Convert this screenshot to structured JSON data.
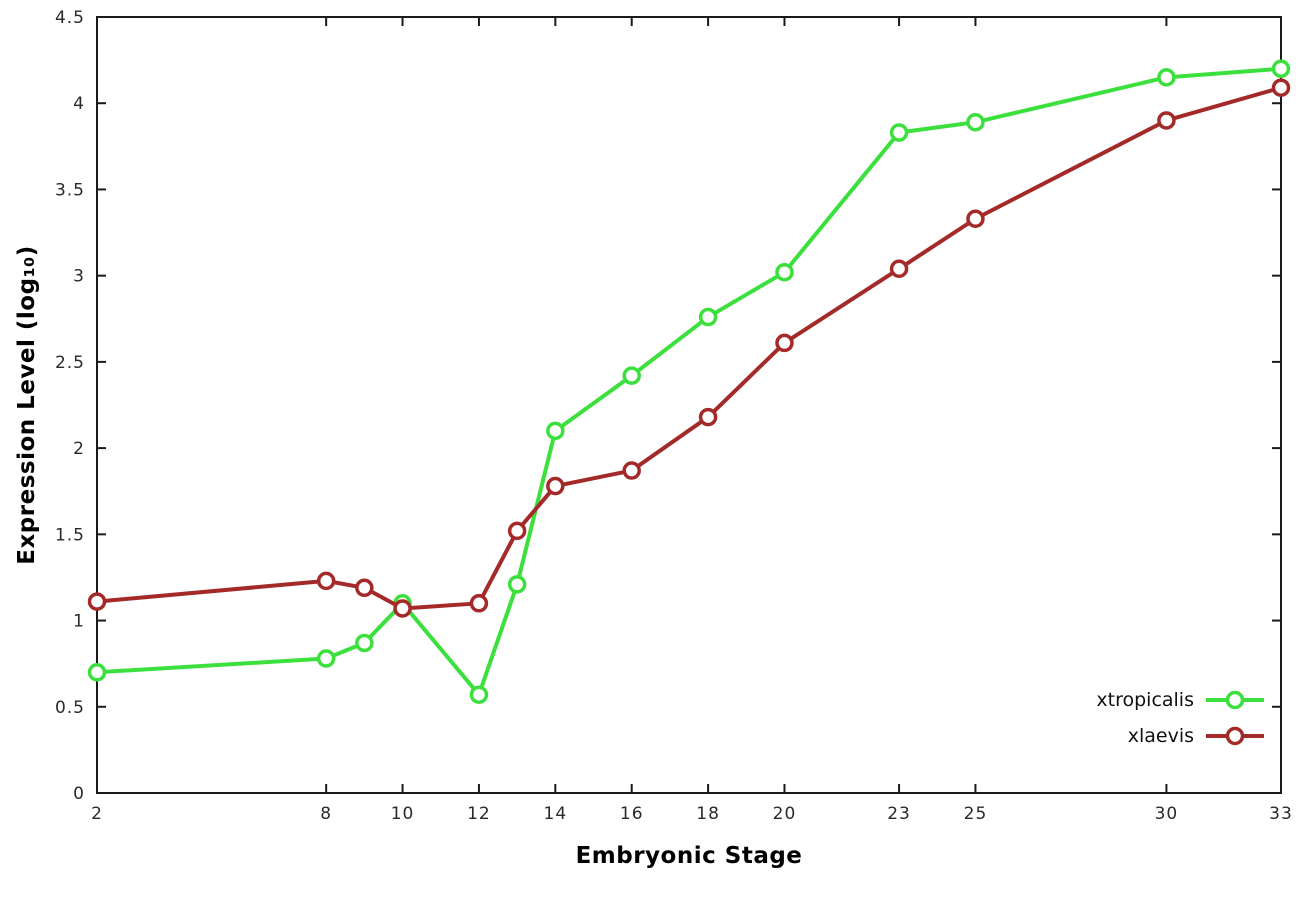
{
  "figure": {
    "background": "#ffffff"
  },
  "chart_data": {
    "type": "line",
    "title": "",
    "xlabel": "Embryonic Stage",
    "ylabel": "Expression Level (log₁₀)",
    "xlim": [
      2,
      33
    ],
    "ylim": [
      0,
      4.5
    ],
    "grid": false,
    "legend_position": "bottom-right",
    "marker": "open-circle",
    "axis_color": "#1a1a1a",
    "tick_label_color": "#2a2a2a",
    "x": [
      2,
      8,
      9,
      10,
      12,
      13,
      14,
      16,
      18,
      20,
      23,
      25,
      30,
      33
    ],
    "series": [
      {
        "name": "xtropicalis",
        "color": "#3ce03c",
        "values": [
          0.7,
          0.78,
          0.87,
          1.1,
          0.57,
          1.21,
          2.1,
          2.42,
          2.76,
          3.02,
          3.83,
          3.89,
          4.15,
          4.2
        ]
      },
      {
        "name": "xlaevis",
        "color": "#a42a2a",
        "values": [
          1.11,
          1.23,
          1.19,
          1.07,
          1.1,
          1.52,
          1.78,
          1.87,
          2.18,
          2.61,
          3.04,
          3.33,
          3.9,
          4.09
        ]
      }
    ],
    "xticks": [
      {
        "v": 2,
        "label": "2"
      },
      {
        "v": 8,
        "label": "8"
      },
      {
        "v": 10,
        "label": "10"
      },
      {
        "v": 12,
        "label": "12"
      },
      {
        "v": 14,
        "label": "14"
      },
      {
        "v": 16,
        "label": "16"
      },
      {
        "v": 18,
        "label": "18"
      },
      {
        "v": 20,
        "label": "20"
      },
      {
        "v": 23,
        "label": "23"
      },
      {
        "v": 25,
        "label": "25"
      },
      {
        "v": 30,
        "label": "30"
      },
      {
        "v": 33,
        "label": "33"
      }
    ],
    "yticks": [
      {
        "v": 0,
        "label": "0"
      },
      {
        "v": 0.5,
        "label": "0.5"
      },
      {
        "v": 1,
        "label": "1"
      },
      {
        "v": 1.5,
        "label": "1.5"
      },
      {
        "v": 2,
        "label": "2"
      },
      {
        "v": 2.5,
        "label": "2.5"
      },
      {
        "v": 3,
        "label": "3"
      },
      {
        "v": 3.5,
        "label": "3.5"
      },
      {
        "v": 4,
        "label": "4"
      },
      {
        "v": 4.5,
        "label": "4.5"
      }
    ]
  }
}
